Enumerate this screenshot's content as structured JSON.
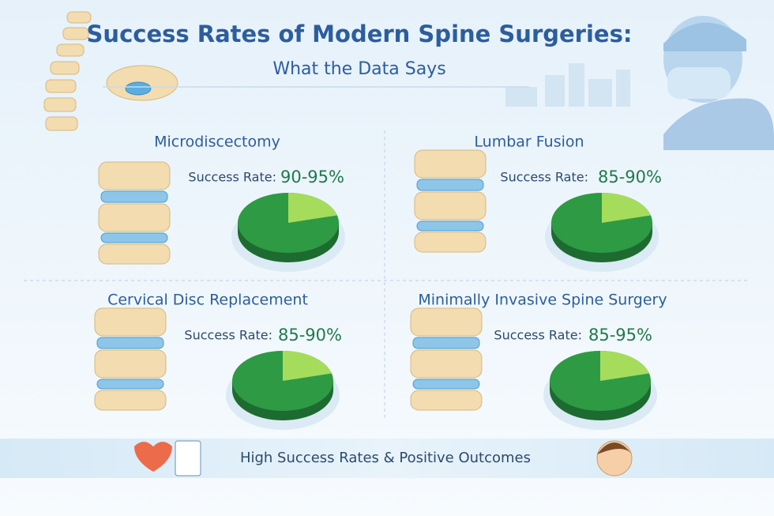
{
  "header": {
    "title": "Success Rates of Modern Spine Surgeries:",
    "subtitle": "What the Data Says"
  },
  "panels": [
    {
      "title": "Microdiscectomy",
      "label": "Success Rate:",
      "value": "90-95%"
    },
    {
      "title": "Lumbar Fusion",
      "label": "Success Rate:",
      "value": "85-90%"
    },
    {
      "title": "Cervical Disc Replacement",
      "label": "Success Rate:",
      "value": "85-90%"
    },
    {
      "title": "Minimally Invasive Spine Surgery",
      "label": "Success Rate:",
      "value": "85-95%"
    }
  ],
  "footer": {
    "text": "High Success Rates & Positive Outcomes"
  }
}
